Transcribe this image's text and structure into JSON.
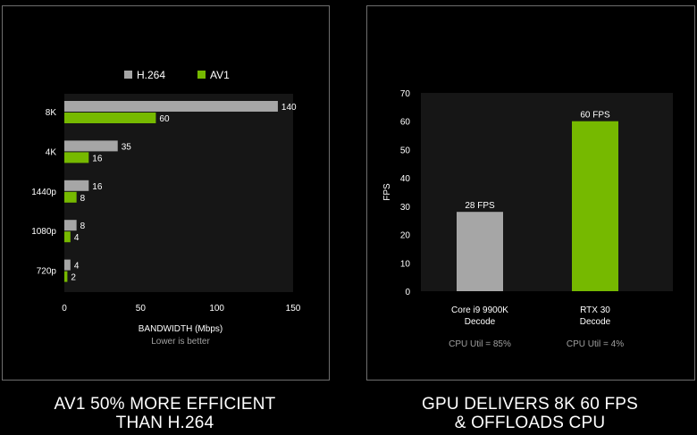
{
  "colors": {
    "h264": "#a6a6a6",
    "av1": "#76b900",
    "plot_bg": "#161616",
    "grid": "#3a3a3a",
    "text": "#ffffff",
    "muted": "#a0a0a0"
  },
  "left_caption": [
    "AV1 50% MORE EFFICIENT",
    "THAN H.264"
  ],
  "right_caption": [
    "GPU DELIVERS 8K 60 FPS",
    "& OFFLOADS CPU"
  ],
  "chart_data": [
    {
      "type": "bar",
      "orientation": "horizontal",
      "categories": [
        "8K",
        "4K",
        "1440p",
        "1080p",
        "720p"
      ],
      "series": [
        {
          "name": "H.264",
          "values": [
            140,
            35,
            16,
            8,
            4
          ],
          "color": "#a6a6a6"
        },
        {
          "name": "AV1",
          "values": [
            60,
            16,
            8,
            4,
            2
          ],
          "color": "#76b900"
        }
      ],
      "xlabel": "BANDWIDTH (Mbps)",
      "subtitle": "Lower is better",
      "xlim": [
        0,
        150
      ],
      "xticks": [
        0,
        50,
        100,
        150
      ],
      "legend": "top",
      "grid": false
    },
    {
      "type": "bar",
      "orientation": "vertical",
      "categories": [
        [
          "Core i9 9900K",
          "Decode"
        ],
        [
          "RTX 30",
          "Decode"
        ]
      ],
      "values": [
        28,
        60
      ],
      "data_labels": [
        "28 FPS",
        "60 FPS"
      ],
      "colors": [
        "#a6a6a6",
        "#76b900"
      ],
      "notes": [
        "CPU Util = 85%",
        "CPU Util = 4%"
      ],
      "ylabel": "FPS",
      "ylim": [
        0,
        70
      ],
      "yticks": [
        0,
        10,
        20,
        30,
        40,
        50,
        60,
        70
      ],
      "grid": false
    }
  ]
}
